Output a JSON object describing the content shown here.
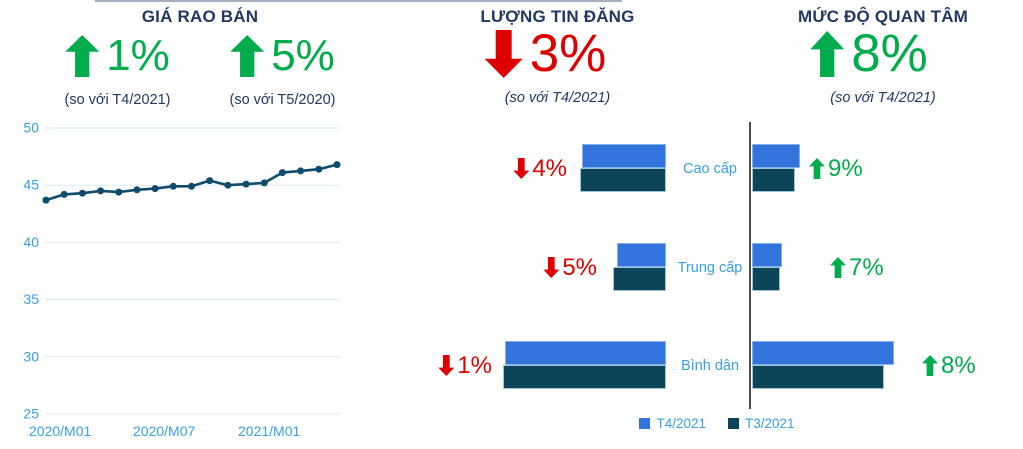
{
  "colors": {
    "title_navy": "#1F3864",
    "green": "#00AC4B",
    "red": "#DE0000",
    "bar_blue": "#3374DC",
    "bar_navy": "#0B4557",
    "light_blue": "#37A0E6",
    "line_chart": "#0F4C6B",
    "gridline": "#D9E9F7",
    "divider_line": "#4D4D4D"
  },
  "sections": [
    {
      "title": "GIÁ RAO BÁN",
      "badges": [
        {
          "direction": "up",
          "value": "1%",
          "note": "(so với T4/2021)"
        },
        {
          "direction": "up",
          "value": "5%",
          "note": "(so với T5/2020)"
        }
      ]
    },
    {
      "title": "LƯỢNG TIN ĐĂNG",
      "badges": [
        {
          "direction": "down",
          "value": "3%",
          "note": "(so với T4/2021)"
        }
      ]
    },
    {
      "title": "MỨC ĐỘ QUAN TÂM",
      "badges": [
        {
          "direction": "up",
          "value": "8%",
          "note": "(so với T4/2021)"
        }
      ]
    }
  ],
  "chart_data": [
    {
      "type": "line",
      "title": "GIÁ RAO BÁN",
      "x": [
        "2020/M01",
        "2020/M02",
        "2020/M03",
        "2020/M04",
        "2020/M05",
        "2020/M06",
        "2020/M07",
        "2020/M08",
        "2020/M09",
        "2020/M10",
        "2020/M11",
        "2020/M12",
        "2021/M01",
        "2021/M02",
        "2021/M03",
        "2021/M04",
        "2021/M05"
      ],
      "values": [
        43.7,
        44.2,
        44.3,
        44.5,
        44.4,
        44.6,
        44.7,
        44.9,
        44.9,
        45.4,
        45.0,
        45.1,
        45.2,
        46.1,
        46.25,
        46.4,
        46.8
      ],
      "x_tick_labels": [
        "2020/M01",
        "2020/M07",
        "2021/M01"
      ],
      "ylim": [
        25,
        50
      ],
      "yticks": [
        50,
        45,
        40,
        35,
        30,
        25
      ],
      "grid": true,
      "legend_position": "none"
    },
    {
      "type": "bar",
      "title": "LƯỢNG TIN ĐĂNG",
      "orientation": "horizontal",
      "bars_alignment": "right-aligned-to-center-axis",
      "categories": [
        "Cao cấp",
        "Trung cấp",
        "Bình dân"
      ],
      "series": [
        {
          "name": "T4/2021",
          "values": [
            84,
            49,
            161
          ]
        },
        {
          "name": "T3/2021",
          "values": [
            86,
            53,
            163
          ]
        }
      ],
      "value_note": "relative bar lengths (no numeric axis shown)",
      "axis_max": 246,
      "row_changes": [
        {
          "direction": "down",
          "value": "4%"
        },
        {
          "direction": "down",
          "value": "5%"
        },
        {
          "direction": "down",
          "value": "1%"
        }
      ]
    },
    {
      "type": "bar",
      "title": "MỨC ĐỘ QUAN TÂM",
      "orientation": "horizontal",
      "bars_alignment": "left-aligned-to-center-axis",
      "categories": [
        "Cao cấp",
        "Trung cấp",
        "Bình dân"
      ],
      "series": [
        {
          "name": "T4/2021",
          "values": [
            48,
            30,
            142
          ]
        },
        {
          "name": "T3/2021",
          "values": [
            43,
            28,
            132
          ]
        }
      ],
      "value_note": "relative bar lengths (no numeric axis shown)",
      "axis_max": 271,
      "row_changes": [
        {
          "direction": "up",
          "value": "9%"
        },
        {
          "direction": "up",
          "value": "7%"
        },
        {
          "direction": "up",
          "value": "8%"
        }
      ]
    }
  ],
  "legend": {
    "position": "bottom-center",
    "items": [
      {
        "label": "T4/2021",
        "color": "#3374DC"
      },
      {
        "label": "T3/2021",
        "color": "#0B4557"
      }
    ]
  }
}
